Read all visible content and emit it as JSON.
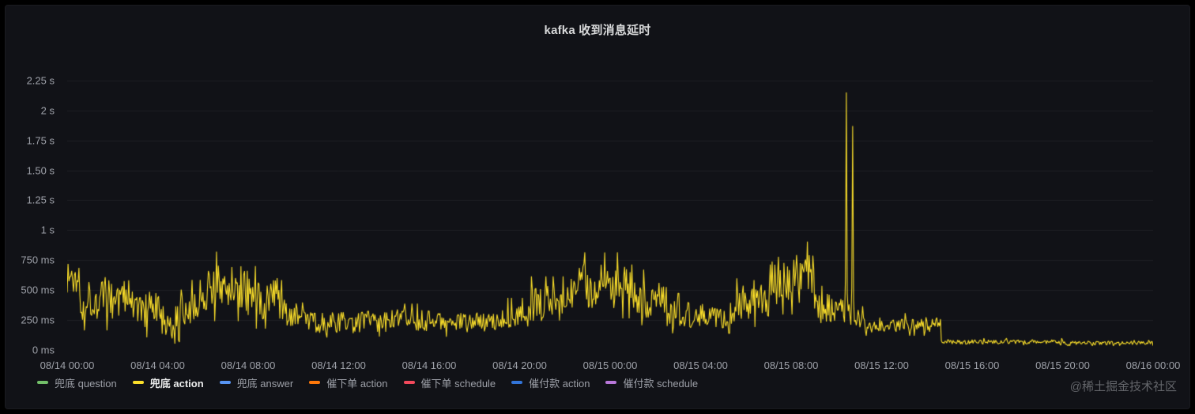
{
  "panel": {
    "title": "kafka 收到消息延时",
    "watermark": "@稀土掘金技术社区"
  },
  "colors": {
    "background": "#000000",
    "panel_background": "#111217",
    "grid": "rgba(255,255,255,0.06)",
    "axis_text": "#9da0a8",
    "title_text": "#d8d9da",
    "legend_text": "#9da0a8",
    "legend_text_active": "#eceded",
    "watermark_text": "#63656a",
    "series_line": "#FADE2A"
  },
  "chart_data": {
    "type": "line",
    "title": "kafka 收到消息延时",
    "legend_position": "bottom",
    "grid": "horizontal",
    "x_axis": {
      "range_hours": [
        0,
        48
      ],
      "ticks": [
        {
          "hour": 0,
          "label": "08/14 00:00"
        },
        {
          "hour": 4,
          "label": "08/14 04:00"
        },
        {
          "hour": 8,
          "label": "08/14 08:00"
        },
        {
          "hour": 12,
          "label": "08/14 12:00"
        },
        {
          "hour": 16,
          "label": "08/14 16:00"
        },
        {
          "hour": 20,
          "label": "08/14 20:00"
        },
        {
          "hour": 24,
          "label": "08/15 00:00"
        },
        {
          "hour": 28,
          "label": "08/15 04:00"
        },
        {
          "hour": 32,
          "label": "08/15 08:00"
        },
        {
          "hour": 36,
          "label": "08/15 12:00"
        },
        {
          "hour": 40,
          "label": "08/15 16:00"
        },
        {
          "hour": 44,
          "label": "08/15 20:00"
        },
        {
          "hour": 48,
          "label": "08/16 00:00"
        }
      ]
    },
    "y_axis": {
      "unit": "ms",
      "max_ms": 2400,
      "ticks": [
        {
          "ms": 0,
          "label": "0 ms"
        },
        {
          "ms": 250,
          "label": "250 ms"
        },
        {
          "ms": 500,
          "label": "500 ms"
        },
        {
          "ms": 750,
          "label": "750 ms"
        },
        {
          "ms": 1000,
          "label": "1 s"
        },
        {
          "ms": 1250,
          "label": "1.25 s"
        },
        {
          "ms": 1500,
          "label": "1.50 s"
        },
        {
          "ms": 1750,
          "label": "1.75 s"
        },
        {
          "ms": 2000,
          "label": "2 s"
        },
        {
          "ms": 2250,
          "label": "2.25 s"
        }
      ]
    },
    "legend": [
      {
        "name": "兜底 question",
        "color": "#73BF69",
        "visible": false,
        "highlighted": false
      },
      {
        "name": "兜底 action",
        "color": "#FADE2A",
        "visible": true,
        "highlighted": true
      },
      {
        "name": "兜底 answer",
        "color": "#5794F2",
        "visible": false,
        "highlighted": false
      },
      {
        "name": "催下单 action",
        "color": "#FF780A",
        "visible": false,
        "highlighted": false
      },
      {
        "name": "催下单 schedule",
        "color": "#F2495C",
        "visible": false,
        "highlighted": false
      },
      {
        "name": "催付款 action",
        "color": "#3274D9",
        "visible": false,
        "highlighted": false
      },
      {
        "name": "催付款 schedule",
        "color": "#B877D9",
        "visible": false,
        "highlighted": false
      }
    ],
    "visible_series": {
      "name": "兜底 action",
      "color": "#FADE2A",
      "sample_step_hours": 0.04,
      "noise_seed": 1337,
      "segments_hours_base_amp_ms": [
        [
          0,
          0.6,
          600,
          190
        ],
        [
          0.6,
          3,
          430,
          190
        ],
        [
          3,
          4.2,
          330,
          160
        ],
        [
          4.2,
          5,
          170,
          130
        ],
        [
          5,
          6,
          360,
          150
        ],
        [
          6,
          8,
          520,
          200
        ],
        [
          8,
          9.5,
          430,
          180
        ],
        [
          9.5,
          10.5,
          300,
          120
        ],
        [
          10.5,
          13,
          230,
          90
        ],
        [
          13,
          16,
          245,
          95
        ],
        [
          16,
          19,
          230,
          85
        ],
        [
          19,
          20.5,
          285,
          100
        ],
        [
          20.5,
          22,
          390,
          150
        ],
        [
          22,
          25,
          530,
          190
        ],
        [
          25,
          26.5,
          430,
          160
        ],
        [
          26.5,
          29.5,
          300,
          115
        ],
        [
          29.5,
          31,
          430,
          170
        ],
        [
          31,
          33,
          590,
          210
        ],
        [
          33,
          34.3,
          340,
          130
        ],
        [
          34.3,
          35.2,
          280,
          110
        ],
        [
          35.2,
          38.6,
          210,
          65
        ],
        [
          38.6,
          44,
          68,
          20
        ],
        [
          44,
          48,
          58,
          16
        ]
      ],
      "spikes": [
        {
          "hour": 34.45,
          "peak_ms": 2150
        },
        {
          "hour": 34.72,
          "peak_ms": 1870
        }
      ]
    }
  }
}
